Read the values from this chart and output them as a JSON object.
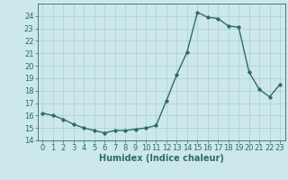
{
  "x": [
    0,
    1,
    2,
    3,
    4,
    5,
    6,
    7,
    8,
    9,
    10,
    11,
    12,
    13,
    14,
    15,
    16,
    17,
    18,
    19,
    20,
    21,
    22,
    23
  ],
  "y": [
    16.2,
    16.0,
    15.7,
    15.3,
    15.0,
    14.8,
    14.6,
    14.8,
    14.8,
    14.9,
    15.0,
    15.2,
    17.2,
    19.3,
    21.1,
    24.3,
    23.9,
    23.8,
    23.2,
    23.1,
    19.5,
    18.1,
    17.5,
    18.5
  ],
  "xlim": [
    -0.5,
    23.5
  ],
  "ylim": [
    14,
    25
  ],
  "yticks": [
    14,
    15,
    16,
    17,
    18,
    19,
    20,
    21,
    22,
    23,
    24
  ],
  "xticks": [
    0,
    1,
    2,
    3,
    4,
    5,
    6,
    7,
    8,
    9,
    10,
    11,
    12,
    13,
    14,
    15,
    16,
    17,
    18,
    19,
    20,
    21,
    22,
    23
  ],
  "xlabel": "Humidex (Indice chaleur)",
  "line_color": "#2d6e5e",
  "marker": "D",
  "marker_size": 1.8,
  "bg_color": "#cce8ec",
  "grid_color": "#aacdd4",
  "tick_label_size": 6,
  "xlabel_size": 7,
  "linewidth": 1.0
}
